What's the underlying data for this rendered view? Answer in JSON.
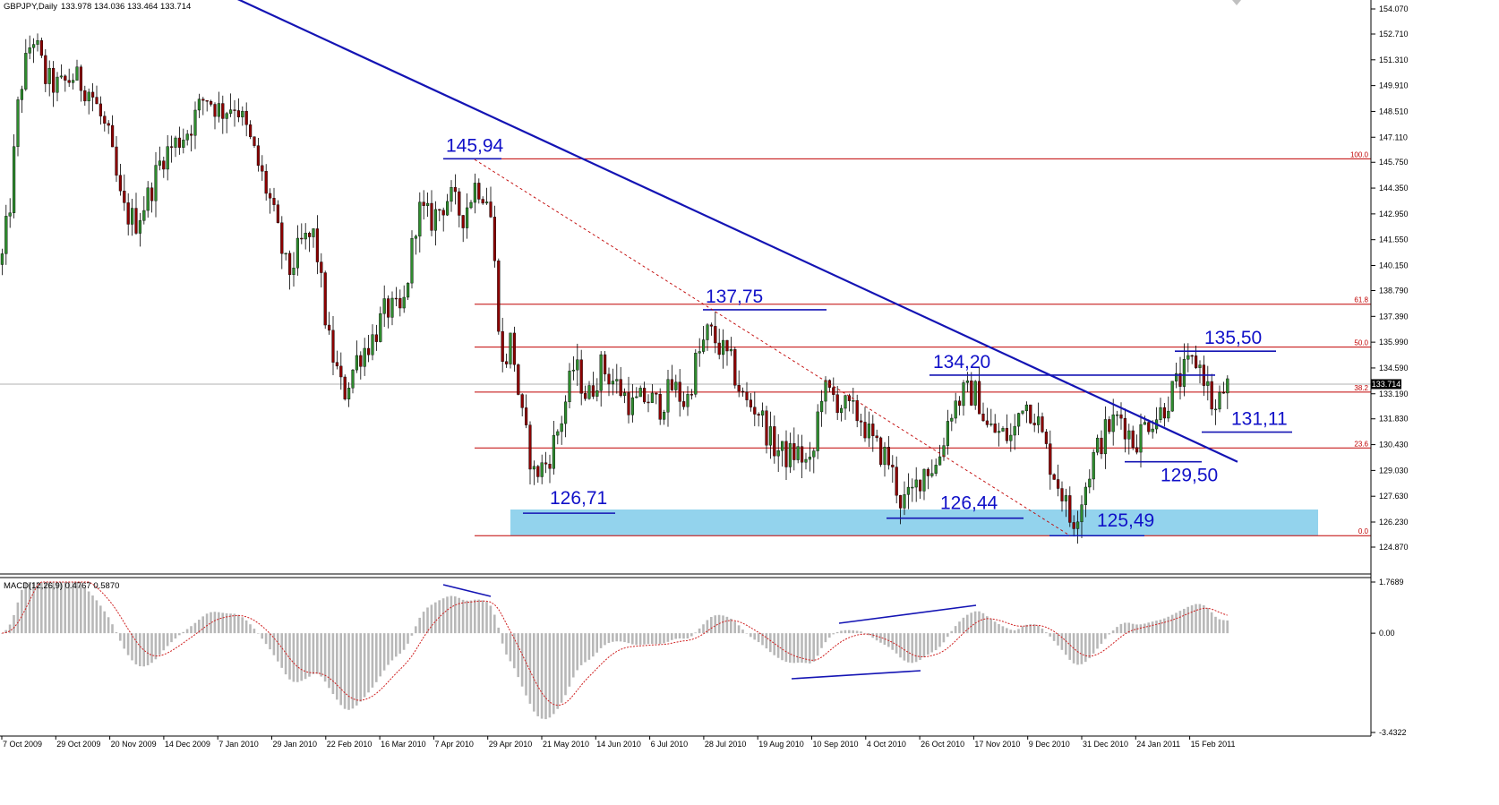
{
  "header": {
    "symbol": "GBPJPY,Daily",
    "ohlc": "133.978 134.036 133.464 133.714"
  },
  "macd_header": "MACD(12,26,9) 0.4767 0.5870",
  "current_price_label": "133.714",
  "chart_data": [
    {
      "type": "candlestick",
      "title": "",
      "ylim": [
        124.87,
        154.07
      ],
      "y_ticks": [
        "154.070",
        "152.710",
        "151.310",
        "149.910",
        "148.510",
        "147.110",
        "145.750",
        "144.350",
        "142.950",
        "141.550",
        "140.150",
        "138.790",
        "137.390",
        "135.990",
        "134.590",
        "133.190",
        "131.830",
        "130.430",
        "129.030",
        "127.630",
        "126.230",
        "124.870"
      ],
      "x_ticks": [
        "7 Oct 2009",
        "29 Oct 2009",
        "20 Nov 2009",
        "14 Dec 2009",
        "7 Jan 2010",
        "29 Jan 2010",
        "22 Feb 2010",
        "16 Mar 2010",
        "7 Apr 2010",
        "29 Apr 2010",
        "21 May 2010",
        "14 Jun 2010",
        "6 Jul 2010",
        "28 Jul 2010",
        "19 Aug 2010",
        "10 Sep 2010",
        "4 Oct 2010",
        "26 Oct 2010",
        "17 Nov 2010",
        "9 Dec 2010",
        "31 Dec 2010",
        "24 Jan 2011",
        "15 Feb 2011"
      ],
      "waypoints": [
        [
          0,
          140.2
        ],
        [
          10,
          143.6
        ],
        [
          20,
          149.5
        ],
        [
          35,
          152.7
        ],
        [
          50,
          150.2
        ],
        [
          65,
          149.8
        ],
        [
          80,
          150.4
        ],
        [
          100,
          149.6
        ],
        [
          120,
          147.0
        ],
        [
          135,
          143.2
        ],
        [
          150,
          142.5
        ],
        [
          165,
          144.0
        ],
        [
          180,
          146.1
        ],
        [
          195,
          146.8
        ],
        [
          210,
          147.6
        ],
        [
          228,
          149.4
        ],
        [
          245,
          148.5
        ],
        [
          262,
          149.0
        ],
        [
          280,
          146.6
        ],
        [
          300,
          143.7
        ],
        [
          320,
          139.6
        ],
        [
          335,
          141.3
        ],
        [
          350,
          141.8
        ],
        [
          365,
          136.2
        ],
        [
          382,
          133.1
        ],
        [
          398,
          135.2
        ],
        [
          415,
          136.2
        ],
        [
          430,
          137.8
        ],
        [
          448,
          137.5
        ],
        [
          465,
          143.2
        ],
        [
          480,
          142.6
        ],
        [
          500,
          143.9
        ],
        [
          515,
          142.8
        ],
        [
          530,
          144.6
        ],
        [
          545,
          143.8
        ],
        [
          560,
          134.5
        ],
        [
          570,
          136.3
        ],
        [
          580,
          132.2
        ],
        [
          595,
          128.8
        ],
        [
          610,
          129.5
        ],
        [
          625,
          131.7
        ],
        [
          640,
          134.8
        ],
        [
          655,
          132.9
        ],
        [
          670,
          134.7
        ],
        [
          690,
          133.5
        ],
        [
          705,
          132.5
        ],
        [
          720,
          133.0
        ],
        [
          735,
          132.5
        ],
        [
          750,
          133.6
        ],
        [
          765,
          132.6
        ],
        [
          775,
          134.8
        ],
        [
          790,
          136.6
        ],
        [
          800,
          135.9
        ],
        [
          815,
          134.8
        ],
        [
          830,
          132.7
        ],
        [
          845,
          132.4
        ],
        [
          860,
          130.5
        ],
        [
          875,
          129.8
        ],
        [
          890,
          130.0
        ],
        [
          905,
          129.0
        ],
        [
          915,
          133.4
        ],
        [
          930,
          133.0
        ],
        [
          945,
          132.3
        ],
        [
          960,
          131.9
        ],
        [
          975,
          130.3
        ],
        [
          990,
          129.7
        ],
        [
          1005,
          127.3
        ],
        [
          1015,
          127.5
        ],
        [
          1030,
          129.1
        ],
        [
          1045,
          129.3
        ],
        [
          1060,
          132.3
        ],
        [
          1075,
          133.2
        ],
        [
          1090,
          133.2
        ],
        [
          1100,
          131.4
        ],
        [
          1115,
          131.0
        ],
        [
          1130,
          130.8
        ],
        [
          1140,
          132.9
        ],
        [
          1155,
          132.1
        ],
        [
          1170,
          129.6
        ],
        [
          1185,
          127.8
        ],
        [
          1195,
          126.1
        ],
        [
          1205,
          127.3
        ],
        [
          1220,
          129.8
        ],
        [
          1235,
          131.3
        ],
        [
          1250,
          132.0
        ],
        [
          1265,
          130.5
        ],
        [
          1280,
          131.7
        ],
        [
          1295,
          132.2
        ],
        [
          1310,
          133.5
        ],
        [
          1325,
          134.6
        ],
        [
          1335,
          135.0
        ],
        [
          1345,
          134.0
        ],
        [
          1355,
          132.0
        ],
        [
          1365,
          133.4
        ],
        [
          1372,
          133.7
        ]
      ],
      "annotations": {
        "price_labels": [
          "145,94",
          "137,75",
          "134,20",
          "135,50",
          "131,11",
          "129,50",
          "126,71",
          "126,44",
          "125,49"
        ],
        "fib_levels": [
          {
            "label": "100.0",
            "value": 145.94
          },
          {
            "label": "61.8",
            "value": 138.05
          },
          {
            "label": "50.0",
            "value": 135.72
          },
          {
            "label": "38.2",
            "value": 133.28
          },
          {
            "label": "23.6",
            "value": 130.25
          },
          {
            "label": "0.0",
            "value": 125.49
          }
        ],
        "support_zone": [
          125.49,
          126.91
        ],
        "trendline": [
          [
            230,
            155.4
          ],
          [
            1382,
            129.5
          ]
        ],
        "dotted_line": [
          [
            530,
            145.9
          ],
          [
            1195,
            125.49
          ]
        ]
      }
    },
    {
      "type": "bar",
      "title": "",
      "ylim": [
        -3.4322,
        1.7689
      ],
      "y_ticks": [
        "1.7689",
        "0.00",
        "-3.4322"
      ],
      "signal_line": "dashed red",
      "divergence_lines": [
        [
          [
            495,
            653
          ],
          [
            548,
            666
          ]
        ],
        [
          [
            937,
            696
          ],
          [
            1090,
            676
          ]
        ],
        [
          [
            884,
            758
          ],
          [
            1028,
            749
          ]
        ]
      ]
    }
  ],
  "colors": {
    "up_candle": "#2e8b2e",
    "down_candle": "#8b0000",
    "trend": "#1414b4",
    "fib": "#c00000",
    "zone": "#87ceeb",
    "histogram": "#b8b8b8"
  }
}
